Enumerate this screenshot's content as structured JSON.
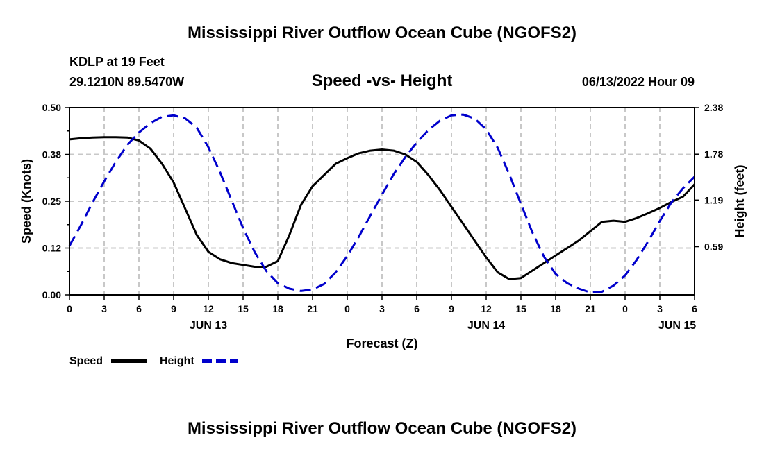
{
  "page": {
    "title": "Mississippi River Outflow Ocean Cube (NGOFS2)",
    "footer_title": "Mississippi River Outflow Ocean Cube (NGOFS2)"
  },
  "station": {
    "name": "KDLP at 19 Feet",
    "coords": "29.1210N  89.5470W",
    "timestamp": "06/13/2022 Hour 09"
  },
  "chart_data": {
    "type": "line",
    "title": "Speed -vs- Height",
    "xlabel": "Forecast (Z)",
    "ylabel": "Speed (Knots)",
    "y2label": "Height (feet)",
    "xlim": [
      0,
      54
    ],
    "ylim": [
      0,
      0.5
    ],
    "y2lim": [
      -0.03,
      2.38
    ],
    "y_ticks": [
      {
        "value": 0.0,
        "label": "0.00"
      },
      {
        "value": 0.125,
        "label": "0.12"
      },
      {
        "value": 0.25,
        "label": "0.25"
      },
      {
        "value": 0.375,
        "label": "0.38"
      },
      {
        "value": 0.5,
        "label": "0.50"
      }
    ],
    "y2_ticks": [
      {
        "value": 0.59,
        "label": "0.59"
      },
      {
        "value": 1.19,
        "label": "1.19"
      },
      {
        "value": 1.78,
        "label": "1.78"
      },
      {
        "value": 2.38,
        "label": "2.38"
      }
    ],
    "x_ticks": [
      {
        "value": 0,
        "label": "0"
      },
      {
        "value": 3,
        "label": "3"
      },
      {
        "value": 6,
        "label": "6"
      },
      {
        "value": 9,
        "label": "9"
      },
      {
        "value": 12,
        "label": "12"
      },
      {
        "value": 15,
        "label": "15"
      },
      {
        "value": 18,
        "label": "18"
      },
      {
        "value": 21,
        "label": "21"
      },
      {
        "value": 24,
        "label": "0"
      },
      {
        "value": 27,
        "label": "3"
      },
      {
        "value": 30,
        "label": "6"
      },
      {
        "value": 33,
        "label": "9"
      },
      {
        "value": 36,
        "label": "12"
      },
      {
        "value": 39,
        "label": "15"
      },
      {
        "value": 42,
        "label": "18"
      },
      {
        "value": 45,
        "label": "21"
      },
      {
        "value": 48,
        "label": "0"
      },
      {
        "value": 51,
        "label": "3"
      },
      {
        "value": 54,
        "label": "6"
      }
    ],
    "date_labels": [
      {
        "value": 12,
        "label": "JUN 13"
      },
      {
        "value": 36,
        "label": "JUN 14"
      },
      {
        "value": 52.5,
        "label": "JUN 15"
      }
    ],
    "series": [
      {
        "name": "Speed",
        "axis": "left",
        "color": "#000000",
        "dash": "solid",
        "x": [
          0,
          1,
          2,
          3,
          4,
          5,
          6,
          7,
          8,
          9,
          10,
          11,
          12,
          13,
          14,
          15,
          16,
          17,
          18,
          19,
          20,
          21,
          22,
          23,
          24,
          25,
          26,
          27,
          28,
          29,
          30,
          31,
          32,
          33,
          34,
          35,
          36,
          37,
          38,
          39,
          40,
          41,
          42,
          43,
          44,
          45,
          46,
          47,
          48,
          49,
          50,
          51,
          52,
          53,
          54
        ],
        "values": [
          0.415,
          0.418,
          0.42,
          0.421,
          0.421,
          0.42,
          0.412,
          0.39,
          0.35,
          0.3,
          0.23,
          0.16,
          0.115,
          0.095,
          0.085,
          0.08,
          0.075,
          0.075,
          0.09,
          0.16,
          0.24,
          0.29,
          0.32,
          0.35,
          0.365,
          0.378,
          0.385,
          0.388,
          0.385,
          0.375,
          0.355,
          0.32,
          0.28,
          0.235,
          0.19,
          0.145,
          0.1,
          0.06,
          0.042,
          0.045,
          0.065,
          0.085,
          0.105,
          0.125,
          0.145,
          0.17,
          0.195,
          0.198,
          0.195,
          0.205,
          0.218,
          0.232,
          0.248,
          0.262,
          0.295
        ]
      },
      {
        "name": "Height",
        "axis": "right",
        "color": "#0000cc",
        "dash": "dashed",
        "x": [
          0,
          1,
          2,
          3,
          4,
          5,
          6,
          7,
          8,
          9,
          10,
          11,
          12,
          13,
          14,
          15,
          16,
          17,
          18,
          19,
          20,
          21,
          22,
          23,
          24,
          25,
          26,
          27,
          28,
          29,
          30,
          31,
          32,
          33,
          34,
          35,
          36,
          37,
          38,
          39,
          40,
          41,
          42,
          43,
          44,
          45,
          46,
          47,
          48,
          49,
          50,
          51,
          52,
          53,
          54
        ],
        "values": [
          0.6,
          0.87,
          1.16,
          1.43,
          1.68,
          1.9,
          2.06,
          2.18,
          2.26,
          2.28,
          2.24,
          2.12,
          1.87,
          1.55,
          1.19,
          0.83,
          0.52,
          0.28,
          0.12,
          0.05,
          0.02,
          0.04,
          0.11,
          0.26,
          0.47,
          0.72,
          0.99,
          1.26,
          1.52,
          1.74,
          1.93,
          2.09,
          2.21,
          2.28,
          2.29,
          2.24,
          2.1,
          1.86,
          1.52,
          1.14,
          0.77,
          0.46,
          0.24,
          0.12,
          0.05,
          0.0,
          0.01,
          0.09,
          0.22,
          0.42,
          0.66,
          0.92,
          1.16,
          1.34,
          1.49
        ]
      }
    ],
    "legend": [
      {
        "name": "Speed",
        "label": "Speed",
        "color": "#000000",
        "dash": "solid"
      },
      {
        "name": "Height",
        "label": "Height",
        "color": "#0000cc",
        "dash": "dashed"
      }
    ],
    "grid": true,
    "legend_position": "bottom-left"
  }
}
